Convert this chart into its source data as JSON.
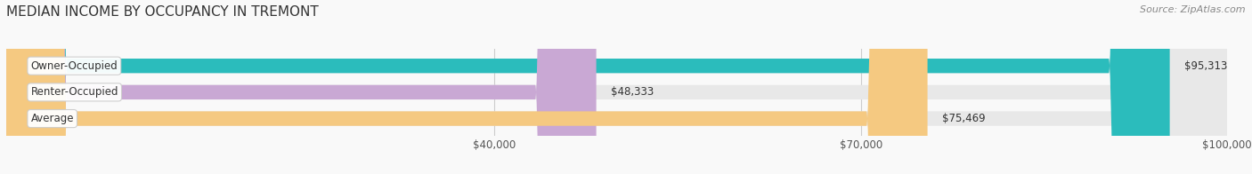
{
  "title": "MEDIAN INCOME BY OCCUPANCY IN TREMONT",
  "source": "Source: ZipAtlas.com",
  "categories": [
    "Owner-Occupied",
    "Renter-Occupied",
    "Average"
  ],
  "values": [
    95313,
    48333,
    75469
  ],
  "bar_colors": [
    "#2bbcbc",
    "#c9a8d4",
    "#f5c981"
  ],
  "bar_bg_color": "#e8e8e8",
  "xlim": [
    0,
    100000
  ],
  "xticks": [
    40000,
    70000,
    100000
  ],
  "xtick_labels": [
    "$40,000",
    "$70,000",
    "$100,000"
  ],
  "value_labels": [
    "$95,313",
    "$48,333",
    "$75,469"
  ],
  "bar_height": 0.55,
  "title_fontsize": 11,
  "source_fontsize": 8,
  "label_fontsize": 8.5,
  "value_fontsize": 8.5,
  "tick_fontsize": 8.5,
  "background_color": "#f9f9f9"
}
